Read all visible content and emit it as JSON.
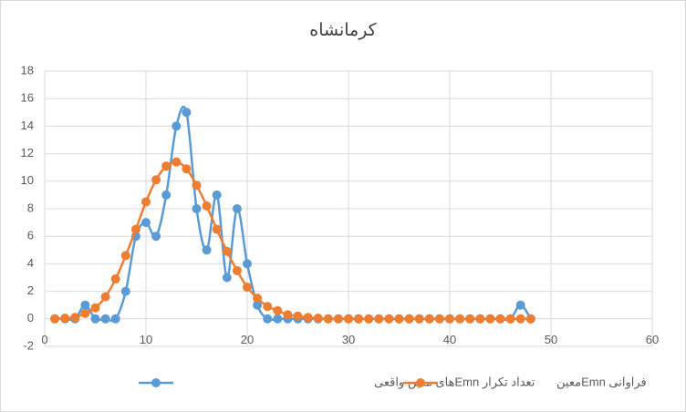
{
  "chart_data": {
    "type": "scatter",
    "title": "کرمانشاه",
    "x": [
      1,
      2,
      3,
      4,
      5,
      6,
      7,
      8,
      9,
      10,
      11,
      12,
      13,
      14,
      15,
      16,
      17,
      18,
      19,
      20,
      21,
      22,
      23,
      24,
      25,
      26,
      27,
      28,
      29,
      30,
      31,
      32,
      33,
      34,
      35,
      36,
      37,
      38,
      39,
      40,
      41,
      42,
      43,
      44,
      45,
      46,
      47,
      48
    ],
    "series": [
      {
        "name": "تعداد تکرار Emnهای معین واقعی",
        "color": "#5b9bd5",
        "values": [
          0,
          0,
          0,
          1,
          0,
          0,
          0,
          2,
          6,
          7,
          6,
          9,
          14,
          15,
          8,
          5,
          9,
          3,
          8,
          4,
          1,
          0,
          0,
          0,
          0,
          0,
          0,
          0,
          0,
          0,
          0,
          0,
          0,
          0,
          0,
          0,
          0,
          0,
          0,
          0,
          0,
          0,
          0,
          0,
          0,
          0,
          1,
          0
        ]
      },
      {
        "name": "فراوانی Emnمعین",
        "color": "#ed7d31",
        "values": [
          0,
          0.05,
          0.1,
          0.4,
          0.8,
          1.6,
          2.9,
          4.6,
          6.5,
          8.5,
          10.1,
          11.1,
          11.4,
          10.9,
          9.7,
          8.2,
          6.5,
          4.9,
          3.5,
          2.3,
          1.5,
          0.9,
          0.6,
          0.3,
          0.2,
          0.1,
          0.05,
          0,
          0,
          0,
          0,
          0,
          0,
          0,
          0,
          0,
          0,
          0,
          0,
          0,
          0,
          0,
          0,
          0,
          0,
          0,
          0,
          0
        ]
      }
    ],
    "xlim": [
      0,
      60
    ],
    "xticks": [
      0,
      10,
      20,
      30,
      40,
      50,
      60
    ],
    "ylim": [
      -2,
      18
    ],
    "yticks": [
      -2,
      0,
      2,
      4,
      6,
      8,
      10,
      12,
      14,
      16,
      18
    ],
    "grid": true,
    "legend": "bottom",
    "smooth": true
  }
}
